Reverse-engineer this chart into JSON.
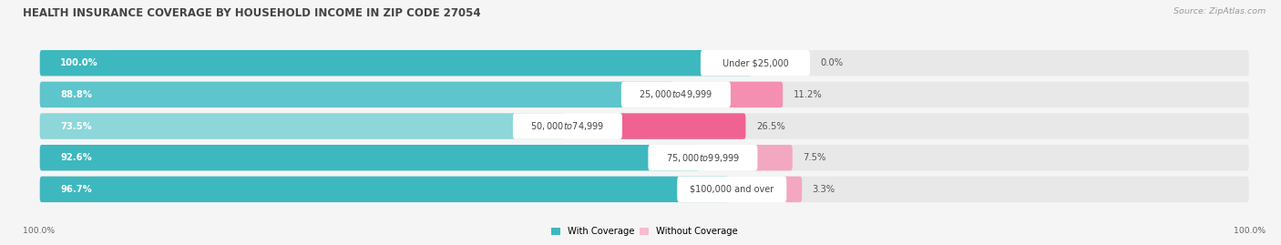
{
  "title": "HEALTH INSURANCE COVERAGE BY HOUSEHOLD INCOME IN ZIP CODE 27054",
  "source": "Source: ZipAtlas.com",
  "categories": [
    "Under $25,000",
    "$25,000 to $49,999",
    "$50,000 to $74,999",
    "$75,000 to $99,999",
    "$100,000 and over"
  ],
  "with_coverage": [
    100.0,
    88.8,
    73.5,
    92.6,
    96.7
  ],
  "without_coverage": [
    0.0,
    11.2,
    26.5,
    7.5,
    3.3
  ],
  "color_with": "#3cb8c0",
  "color_with_light": "#7ed3d8",
  "color_without_dark": "#f06292",
  "color_without_light": "#f8bbd0",
  "bg_color": "#f5f5f5",
  "bar_bg_color": "#e8e8e8",
  "title_fontsize": 8.5,
  "label_fontsize": 7.2,
  "cat_fontsize": 7.0,
  "legend_fontsize": 7.2,
  "source_fontsize": 6.8,
  "axis_label_left": "100.0%",
  "axis_label_right": "100.0%"
}
